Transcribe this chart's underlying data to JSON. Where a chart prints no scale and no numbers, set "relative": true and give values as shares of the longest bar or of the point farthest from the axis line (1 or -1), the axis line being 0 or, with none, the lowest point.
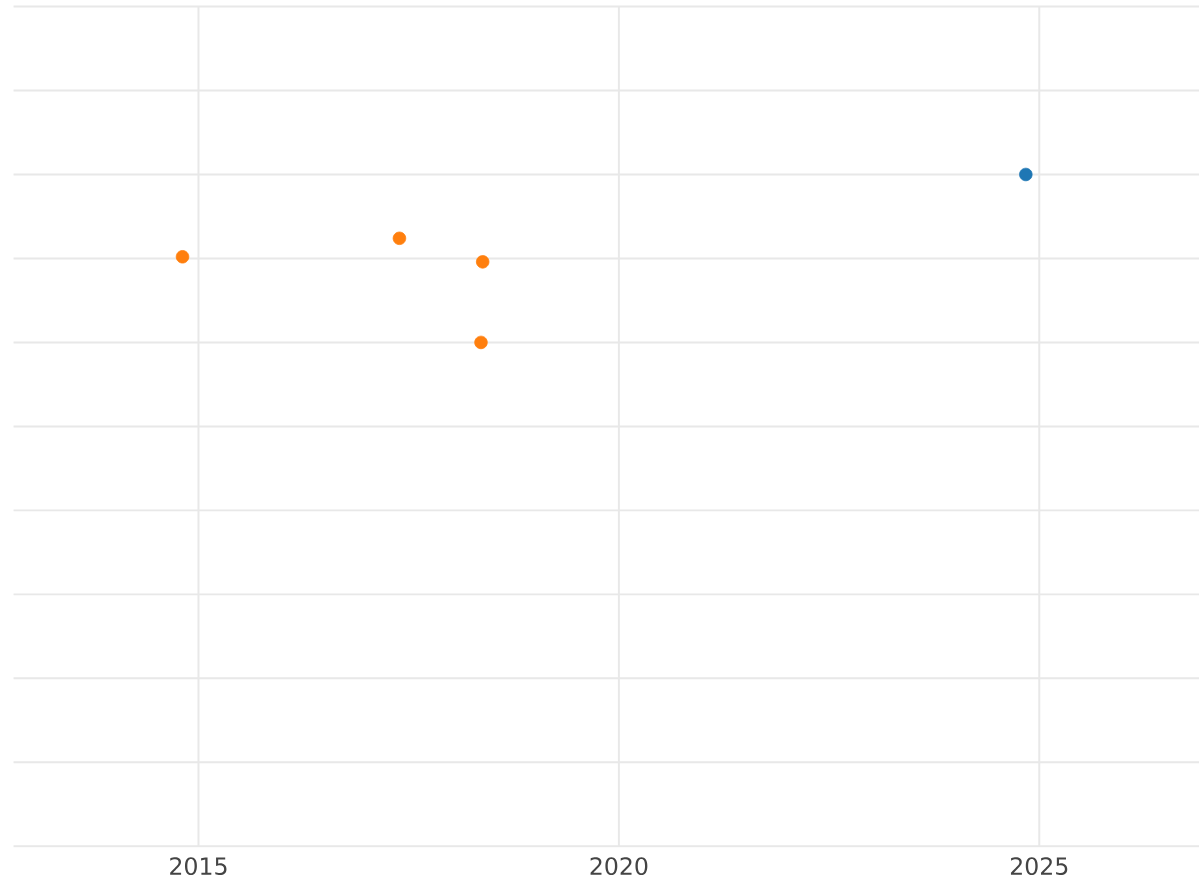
{
  "chart_data": {
    "type": "scatter",
    "relative": true,
    "grid": true,
    "tick_labels": "x",
    "xlim": [
      2012.8,
      2026.9
    ],
    "xticks": [
      2015,
      2020,
      2025
    ],
    "series": [
      {
        "color": "#1f77b4",
        "x": [
          2024.84
        ],
        "values": [
          1
        ]
      },
      {
        "color": "#ff7f0e",
        "x": [
          2014.81,
          2017.39,
          2018.38,
          2018.36
        ],
        "values": [
          0.51,
          0.62,
          0.48,
          0
        ]
      }
    ]
  }
}
